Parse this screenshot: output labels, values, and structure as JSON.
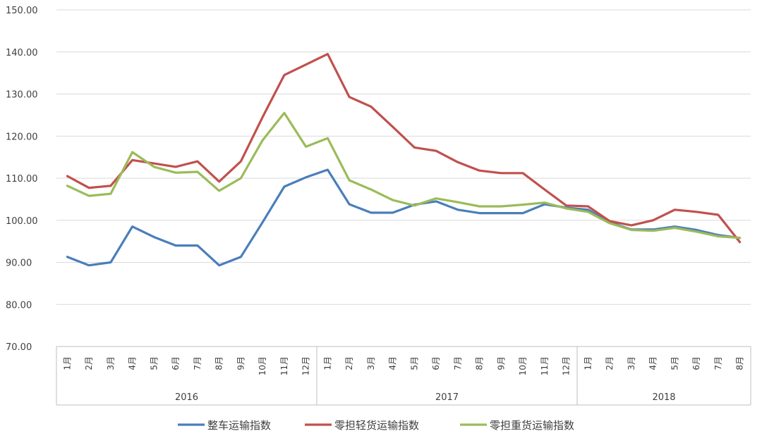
{
  "chart_data": {
    "type": "line",
    "title": "",
    "xlabel": "",
    "ylabel": "",
    "ylim": [
      70,
      150
    ],
    "yticks": [
      "70.00",
      "80.00",
      "90.00",
      "100.00",
      "110.00",
      "120.00",
      "130.00",
      "140.00",
      "150.00"
    ],
    "grid": true,
    "legend_position": "bottom",
    "month_labels": [
      "1月",
      "2月",
      "3月",
      "4月",
      "5月",
      "6月",
      "7月",
      "8月",
      "9月",
      "10月",
      "11月",
      "12月",
      "1月",
      "2月",
      "3月",
      "4月",
      "5月",
      "6月",
      "7月",
      "8月",
      "9月",
      "10月",
      "11月",
      "12月",
      "1月",
      "2月",
      "3月",
      "4月",
      "5月",
      "6月",
      "7月",
      "8月"
    ],
    "years": [
      {
        "label": "2016",
        "start": 0,
        "count": 12
      },
      {
        "label": "2017",
        "start": 12,
        "count": 12
      },
      {
        "label": "2018",
        "start": 24,
        "count": 8
      }
    ],
    "series": [
      {
        "name": "整车运输指数",
        "color": "#4a7ebb",
        "values": [
          91.3,
          89.3,
          90.0,
          98.5,
          96.0,
          94.0,
          94.0,
          89.3,
          91.3,
          99.5,
          108.0,
          110.2,
          112.0,
          103.8,
          101.8,
          101.8,
          103.7,
          104.5,
          102.5,
          101.7,
          101.7,
          101.7,
          103.8,
          103.0,
          102.5,
          99.5,
          97.8,
          97.8,
          98.5,
          97.7,
          96.5,
          95.8
        ]
      },
      {
        "name": "零担轻货运输指数",
        "color": "#c0504d",
        "values": [
          110.5,
          107.7,
          108.2,
          114.3,
          113.5,
          112.7,
          114.0,
          109.2,
          114.0,
          124.5,
          134.5,
          137.0,
          139.5,
          129.3,
          127.0,
          122.2,
          117.3,
          116.5,
          113.8,
          111.8,
          111.2,
          111.2,
          107.3,
          103.5,
          103.3,
          99.8,
          98.8,
          100.0,
          102.5,
          102.0,
          101.3,
          94.8
        ]
      },
      {
        "name": "零担重货运输指数",
        "color": "#9bbb59",
        "values": [
          108.2,
          105.8,
          106.3,
          116.2,
          112.7,
          111.3,
          111.5,
          107.0,
          110.0,
          119.0,
          125.5,
          117.5,
          119.5,
          109.5,
          107.3,
          104.8,
          103.5,
          105.2,
          104.3,
          103.3,
          103.3,
          103.7,
          104.2,
          102.8,
          102.0,
          99.3,
          97.7,
          97.5,
          98.2,
          97.3,
          96.2,
          95.8
        ]
      }
    ]
  }
}
